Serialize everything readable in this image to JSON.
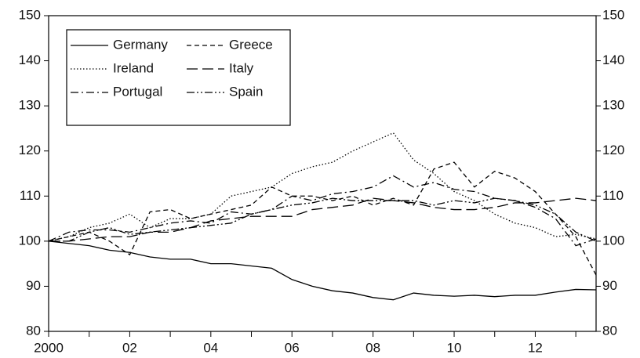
{
  "chart_data": {
    "type": "line",
    "x": [
      2000,
      2000.5,
      2001,
      2001.5,
      2002,
      2002.5,
      2003,
      2003.5,
      2004,
      2004.5,
      2005,
      2005.5,
      2006,
      2006.5,
      2007,
      2007.5,
      2008,
      2008.5,
      2009,
      2009.5,
      2010,
      2010.5,
      2011,
      2011.5,
      2012,
      2012.5,
      2013,
      2013.5
    ],
    "series": [
      {
        "name": "Germany",
        "color": "#000000",
        "dash": "none",
        "values": [
          100,
          99.5,
          99,
          98,
          97.5,
          96.5,
          96,
          96,
          95,
          95,
          94.5,
          94,
          91.5,
          90,
          89,
          88.5,
          87.5,
          87,
          88.5,
          88,
          87.8,
          88,
          87.7,
          88,
          88,
          88.7,
          89.3,
          89.2
        ]
      },
      {
        "name": "Greece",
        "color": "#000000",
        "dash": "6,4",
        "values": [
          100,
          101,
          102,
          100,
          97,
          106.5,
          107,
          105,
          106,
          107,
          108,
          112,
          110,
          110,
          109,
          110,
          108,
          109.5,
          108,
          116,
          117.5,
          112,
          115.5,
          114,
          111,
          106,
          101,
          92.5
        ]
      },
      {
        "name": "Ireland",
        "color": "#000000",
        "dash": "1.5,2.5",
        "values": [
          100,
          101,
          103,
          104,
          106,
          103,
          105,
          105,
          106,
          110,
          111,
          112,
          115,
          116.5,
          117.5,
          120,
          122,
          124,
          118,
          115,
          111,
          109,
          106,
          104,
          103,
          101,
          101.5,
          100.5
        ]
      },
      {
        "name": "Italy",
        "color": "#000000",
        "dash": "14,6",
        "values": [
          100,
          100,
          100.5,
          101,
          101,
          102,
          102,
          103,
          104.5,
          105,
          105.5,
          105.5,
          105.5,
          107,
          107.5,
          108,
          109.5,
          109,
          108.5,
          107.5,
          107,
          107,
          107.5,
          108.5,
          108.5,
          109,
          109.5,
          109
        ]
      },
      {
        "name": "Portugal",
        "color": "#000000",
        "dash": "10,4,2,4",
        "values": [
          100,
          102,
          102.5,
          102.5,
          102,
          103,
          104,
          104.5,
          104,
          106.5,
          106,
          107,
          110,
          109,
          110.5,
          111,
          112,
          114.5,
          112,
          113,
          111.5,
          111,
          109.5,
          109,
          107.5,
          105,
          99,
          100.5
        ]
      },
      {
        "name": "Spain",
        "color": "#000000",
        "dash": "10,3,2,3,2,3",
        "values": [
          100,
          100,
          102,
          103,
          101.5,
          102,
          102.5,
          103,
          103.5,
          104,
          106,
          107,
          108,
          108.5,
          109.5,
          109,
          109,
          109,
          109,
          108,
          109,
          108.5,
          109.5,
          109,
          108,
          106,
          102,
          100
        ]
      }
    ],
    "xlim": [
      2000,
      2013.5
    ],
    "xticks": [
      {
        "value": 2000,
        "label": "2000"
      },
      {
        "value": 2002,
        "label": "02"
      },
      {
        "value": 2004,
        "label": "04"
      },
      {
        "value": 2006,
        "label": "06"
      },
      {
        "value": 2008,
        "label": "08"
      },
      {
        "value": 2010,
        "label": "10"
      },
      {
        "value": 2012,
        "label": "12"
      }
    ],
    "xminor_ticks": [
      2001,
      2003,
      2005,
      2007,
      2009,
      2011,
      2013
    ],
    "ylim": [
      80,
      150
    ],
    "yticks": [
      80,
      90,
      100,
      110,
      120,
      130,
      140,
      150
    ],
    "y2lim": [
      80,
      150
    ],
    "y2ticks": [
      80,
      90,
      100,
      110,
      120,
      130,
      140,
      150
    ],
    "legend": "upper left"
  }
}
